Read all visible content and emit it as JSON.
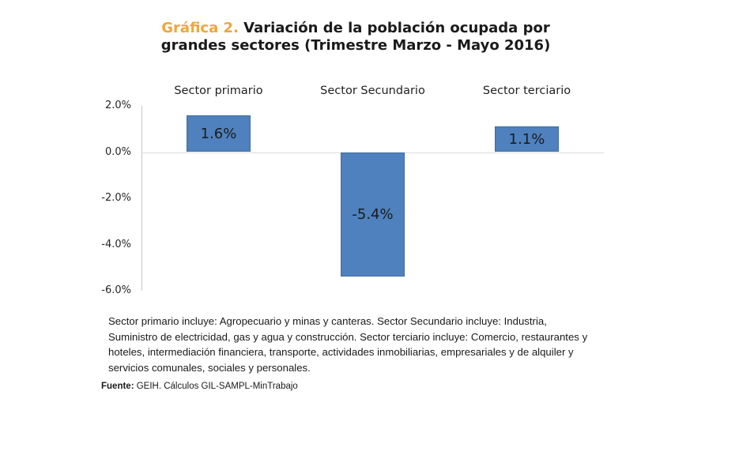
{
  "title": {
    "prefix": "Gráfica 2.",
    "prefix_color": "#F0A63C",
    "line1_rest": "Variación de la población ocupada por",
    "line2": "grandes sectores (Trimestre Marzo - Mayo 2016)"
  },
  "chart_data": {
    "type": "bar",
    "categories": [
      "Sector primario",
      "Sector Secundario",
      "Sector terciario"
    ],
    "values": [
      1.6,
      -5.4,
      1.1
    ],
    "value_labels": [
      "1.6%",
      "-5.4%",
      "1.1%"
    ],
    "series_name": "Variación de la población ocupada",
    "yticks": [
      {
        "value": 2,
        "label": "2.0%"
      },
      {
        "value": 0,
        "label": "0.0%"
      },
      {
        "value": -2,
        "label": "-2.0%"
      },
      {
        "value": -4,
        "label": "-4.0%"
      },
      {
        "value": -6,
        "label": "-6.0%"
      }
    ],
    "ylim": [
      -6,
      2
    ],
    "bar_color": "#4E81BD",
    "bar_border_color": "#3d6c9f",
    "grid": "zero-line-only",
    "legend": "none"
  },
  "footnote": {
    "lines": [
      "Sector primario incluye: Agropecuario y minas y canteras.  Sector Secundario incluye:  Industria,",
      "Suministro de electricidad, gas y agua y construcción. Sector terciario incluye: Comercio, restaurantes y",
      "hoteles, intermediación financiera, transporte, actividades inmobiliarias, empresariales y de alquiler y",
      "servicios comunales, sociales y personales."
    ]
  },
  "source": {
    "label": "Fuente:",
    "text": " GEIH. Cálculos GIL-SAMPL-MinTrabajo"
  }
}
